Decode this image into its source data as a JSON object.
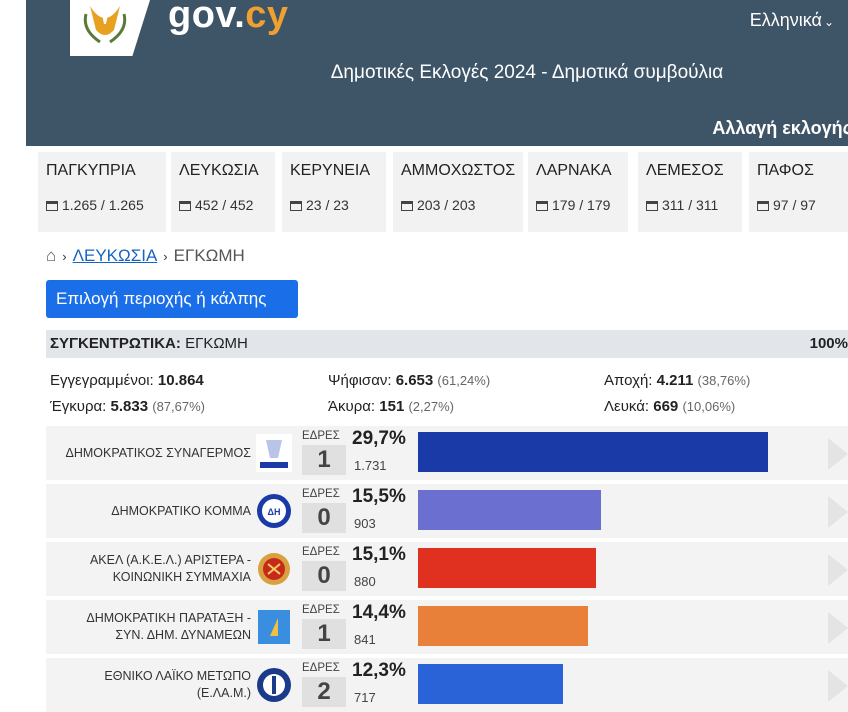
{
  "header": {
    "brand_gov": "gov.",
    "brand_cy": "cy",
    "language": "Ελληνικά",
    "subtitle": "Δημοτικές Εκλογές 2024 - Δημοτικά συμβούλια",
    "change_election": "Αλλαγή εκλογής"
  },
  "districts": [
    {
      "name": "ΠΑΓΚΥΠΡΙΑ",
      "count": "1.265 / 1.265"
    },
    {
      "name": "ΛΕΥΚΩΣΙΑ",
      "count": "452 / 452"
    },
    {
      "name": "ΚΕΡΥΝΕΙΑ",
      "count": "23 / 23"
    },
    {
      "name": "ΑΜΜΟΧΩΣΤΟΣ",
      "count": "203 / 203"
    },
    {
      "name": "ΛΑΡΝΑΚΑ",
      "count": "179 / 179"
    },
    {
      "name": "ΛΕΜΕΣΟΣ",
      "count": "311 / 311"
    },
    {
      "name": "ΠΑΦΟΣ",
      "count": "97 / 97"
    }
  ],
  "breadcrumb": {
    "parent": "ΛΕΥΚΩΣΙΑ",
    "current": "ΕΓΚΩΜΗ"
  },
  "select_button": "Επιλογή περιοχής ή κάλπης",
  "summary": {
    "label": "ΣΥΓΚΕΝΤΡΩΤΙΚΑ:",
    "place": "ΕΓΚΩΜΗ",
    "percent": "100%"
  },
  "stats": {
    "registered_label": "Εγγεγραμμένοι:",
    "registered": "10.864",
    "voted_label": "Ψήφισαν:",
    "voted": "6.653",
    "voted_pct": "(61,24%)",
    "abstain_label": "Αποχή:",
    "abstain": "4.211",
    "abstain_pct": "(38,76%)",
    "valid_label": "Έγκυρα:",
    "valid": "5.833",
    "valid_pct": "(87,67%)",
    "invalid_label": "Άκυρα:",
    "invalid": "151",
    "invalid_pct": "(2,27%)",
    "blank_label": "Λευκά:",
    "blank": "669",
    "blank_pct": "(10,06%)"
  },
  "seats_label": "ΕΔΡΕΣ",
  "parties": [
    {
      "name_l1": "ΔΗΜΟΚΡΑΤΙΚΟΣ ΣΥΝΑΓΕΡΜΟΣ",
      "name_l2": "",
      "seats": "1",
      "pct": "29,7%",
      "votes": "1.731",
      "share": 29.7,
      "color": "#1a3aa8",
      "icon": "disy-logo-icon"
    },
    {
      "name_l1": "ΔΗΜΟΚΡΑΤΙΚΟ ΚΟΜΜΑ",
      "name_l2": "",
      "seats": "0",
      "pct": "15,5%",
      "votes": "903",
      "share": 15.5,
      "color": "#6b6fd0",
      "icon": "diko-logo-icon"
    },
    {
      "name_l1": "ΑΚΕΛ (Α.Κ.Ε.Λ.) ΑΡΙΣΤΕΡΑ -",
      "name_l2": "ΚΟΙΝΩΝΙΚΗ ΣΥΜΜΑΧΙΑ",
      "seats": "0",
      "pct": "15,1%",
      "votes": "880",
      "share": 15.1,
      "color": "#e03020",
      "icon": "akel-logo-icon"
    },
    {
      "name_l1": "ΔΗΜΟΚΡΑΤΙΚΗ ΠΑΡΑΤΑΞΗ -",
      "name_l2": "ΣΥΝ. ΔΗΜ. ΔΥΝΑΜΕΩΝ",
      "seats": "1",
      "pct": "14,4%",
      "votes": "841",
      "share": 14.4,
      "color": "#e8803a",
      "icon": "dipa-logo-icon"
    },
    {
      "name_l1": "ΕΘΝΙΚΟ ΛΑΪΚΟ ΜΕΤΩΠΟ",
      "name_l2": "(Ε.ΛΑ.Μ.)",
      "seats": "2",
      "pct": "12,3%",
      "votes": "717",
      "share": 12.3,
      "color": "#2a62d8",
      "icon": "elam-logo-icon"
    }
  ]
}
